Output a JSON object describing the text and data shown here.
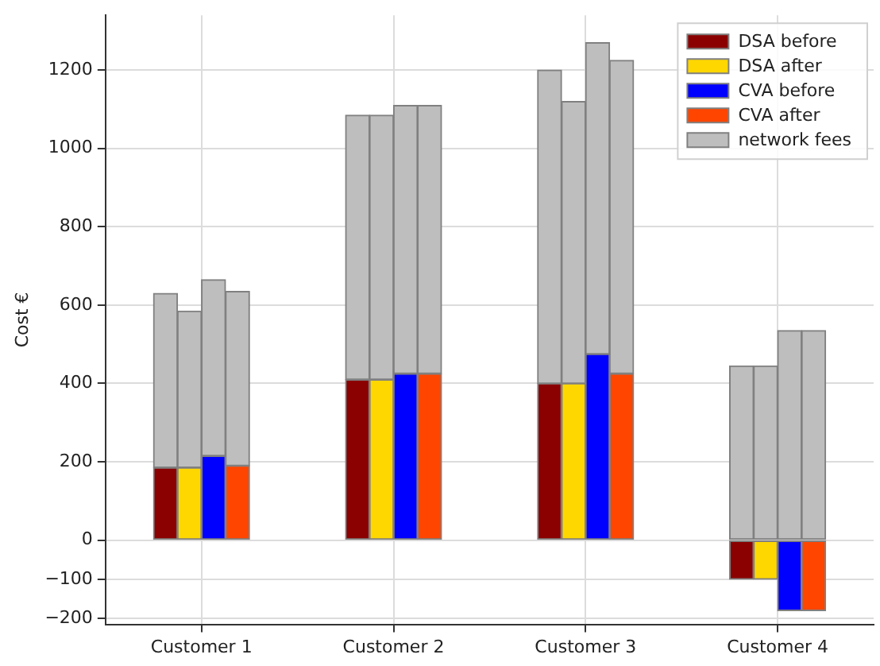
{
  "chart_data": {
    "type": "bar",
    "ylabel": "Cost €",
    "stacked": true,
    "categories": [
      null,
      null,
      null,
      "Customer 1",
      null,
      null,
      null,
      null,
      null,
      null,
      null,
      "Customer 2",
      null,
      null,
      null,
      null,
      null,
      null,
      null,
      "Customer 3",
      null,
      null,
      null,
      null,
      null,
      null,
      null,
      "Customer 4",
      null,
      null,
      null,
      null
    ],
    "series": [
      {
        "name": "DSA before",
        "color": "#8b0000",
        "values": [
          null,
          null,
          185,
          null,
          null,
          null,
          null,
          null,
          null,
          null,
          410,
          null,
          null,
          null,
          null,
          null,
          null,
          null,
          400,
          null,
          null,
          null,
          null,
          null,
          null,
          null,
          -100,
          null,
          null,
          null,
          null,
          null
        ]
      },
      {
        "name": "DSA after",
        "color": "#ffd700",
        "values": [
          null,
          null,
          null,
          185,
          null,
          null,
          null,
          null,
          null,
          null,
          null,
          410,
          null,
          null,
          null,
          null,
          null,
          null,
          null,
          400,
          null,
          null,
          null,
          null,
          null,
          null,
          null,
          -100,
          null,
          null,
          null,
          null
        ]
      },
      {
        "name": "CVA before",
        "color": "#0000ff",
        "values": [
          null,
          null,
          null,
          null,
          215,
          null,
          null,
          null,
          null,
          null,
          null,
          null,
          425,
          null,
          null,
          null,
          null,
          null,
          null,
          null,
          475,
          null,
          null,
          null,
          null,
          null,
          null,
          null,
          -180,
          null,
          null,
          null
        ]
      },
      {
        "name": "CVA after",
        "color": "#ff4500",
        "values": [
          null,
          null,
          null,
          null,
          null,
          190,
          null,
          null,
          null,
          null,
          null,
          null,
          null,
          425,
          null,
          null,
          null,
          null,
          null,
          null,
          null,
          425,
          null,
          null,
          null,
          null,
          null,
          null,
          null,
          -180,
          null,
          null
        ]
      },
      {
        "name": "network fees",
        "color": "#bebebe",
        "values": [
          null,
          null,
          445,
          400,
          450,
          445,
          null,
          null,
          null,
          null,
          675,
          675,
          685,
          685,
          null,
          null,
          null,
          null,
          800,
          720,
          795,
          800,
          null,
          null,
          null,
          null,
          445,
          445,
          535,
          535,
          null,
          null
        ]
      }
    ],
    "ylim": [
      -215,
      1340
    ],
    "yticks": [
      -200,
      -100,
      0,
      200,
      400,
      600,
      800,
      1000,
      1200
    ],
    "grid": true,
    "legend": "top right"
  }
}
